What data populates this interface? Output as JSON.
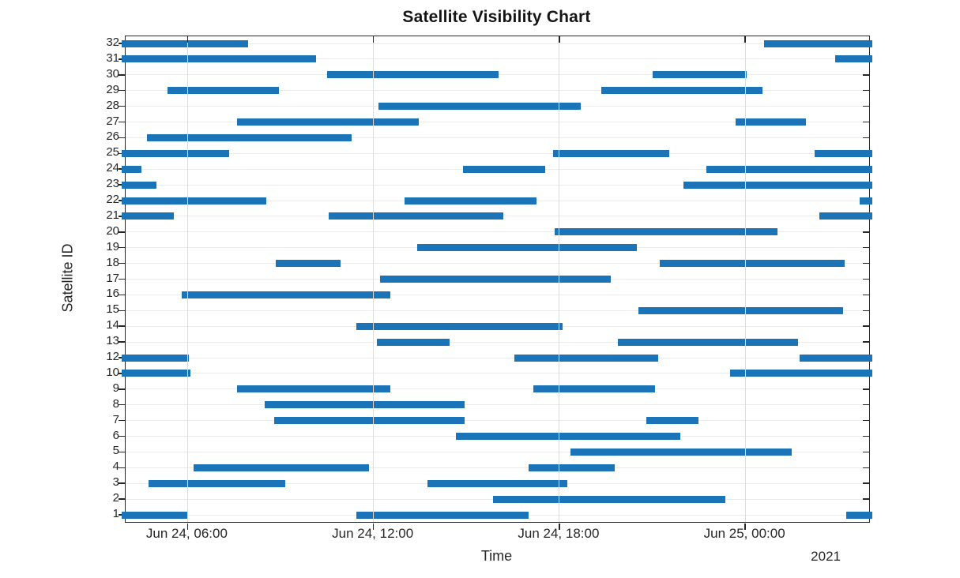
{
  "title": "Satellite Visibility Chart",
  "x_axis": {
    "label": "Time",
    "year_label": "2021",
    "ticks": [
      {
        "label": "Jun 24, 06:00",
        "hour": 6
      },
      {
        "label": "Jun 24, 12:00",
        "hour": 12
      },
      {
        "label": "Jun 24, 18:00",
        "hour": 18
      },
      {
        "label": "Jun 25, 00:00",
        "hour": 24
      }
    ]
  },
  "y_axis": {
    "label": "Satellite ID"
  },
  "colors": {
    "bar": "#1b73b8",
    "axis": "#262626",
    "grid_vertical": "#dcdcdc",
    "grid_horizontal": "#ebebeb"
  },
  "chart_data": {
    "type": "bar",
    "subtype": "gantt-visibility-intervals",
    "title": "Satellite Visibility Chart",
    "xlabel": "Time",
    "ylabel": "Satellite ID",
    "time_unit": "hours_after_2021-06-24_00:00",
    "xlim": [
      4,
      28
    ],
    "grid": true,
    "note": "satellite 11 has no visibility and is absent from the axis",
    "satellites": [
      {
        "id": 32,
        "windows": [
          [
            4.0,
            7.95
          ],
          [
            24.6,
            28.0
          ]
        ]
      },
      {
        "id": 31,
        "windows": [
          [
            4.0,
            10.15
          ],
          [
            26.9,
            28.0
          ]
        ]
      },
      {
        "id": 30,
        "windows": [
          [
            10.5,
            16.05
          ],
          [
            21.0,
            24.05
          ]
        ]
      },
      {
        "id": 29,
        "windows": [
          [
            5.35,
            8.95
          ],
          [
            19.35,
            24.55
          ]
        ]
      },
      {
        "id": 28,
        "windows": [
          [
            12.15,
            18.7
          ]
        ]
      },
      {
        "id": 27,
        "windows": [
          [
            7.6,
            13.45
          ],
          [
            23.7,
            25.95
          ]
        ]
      },
      {
        "id": 26,
        "windows": [
          [
            4.7,
            11.3
          ]
        ]
      },
      {
        "id": 25,
        "windows": [
          [
            4.0,
            7.35
          ],
          [
            17.8,
            21.55
          ],
          [
            26.25,
            28.0
          ]
        ]
      },
      {
        "id": 24,
        "windows": [
          [
            4.0,
            4.5
          ],
          [
            14.9,
            17.55
          ],
          [
            22.75,
            28.0
          ]
        ]
      },
      {
        "id": 23,
        "windows": [
          [
            4.0,
            5.0
          ],
          [
            22.0,
            28.0
          ]
        ]
      },
      {
        "id": 22,
        "windows": [
          [
            4.0,
            8.55
          ],
          [
            13.0,
            17.25
          ],
          [
            27.7,
            28.0
          ]
        ]
      },
      {
        "id": 21,
        "windows": [
          [
            4.0,
            5.55
          ],
          [
            10.55,
            16.2
          ],
          [
            26.4,
            28.0
          ]
        ]
      },
      {
        "id": 20,
        "windows": [
          [
            17.85,
            25.05
          ]
        ]
      },
      {
        "id": 19,
        "windows": [
          [
            13.4,
            20.5
          ]
        ]
      },
      {
        "id": 18,
        "windows": [
          [
            8.85,
            10.95
          ],
          [
            21.25,
            27.2
          ]
        ]
      },
      {
        "id": 17,
        "windows": [
          [
            12.2,
            19.65
          ]
        ]
      },
      {
        "id": 16,
        "windows": [
          [
            5.8,
            12.55
          ]
        ]
      },
      {
        "id": 15,
        "windows": [
          [
            20.55,
            27.15
          ]
        ]
      },
      {
        "id": 14,
        "windows": [
          [
            11.45,
            18.1
          ]
        ]
      },
      {
        "id": 13,
        "windows": [
          [
            12.1,
            14.45
          ],
          [
            19.9,
            25.7
          ]
        ]
      },
      {
        "id": 12,
        "windows": [
          [
            4.0,
            6.05
          ],
          [
            16.55,
            21.2
          ],
          [
            25.75,
            28.0
          ]
        ]
      },
      {
        "id": 10,
        "windows": [
          [
            4.0,
            6.1
          ],
          [
            23.5,
            28.0
          ]
        ]
      },
      {
        "id": 9,
        "windows": [
          [
            7.6,
            12.55
          ],
          [
            17.15,
            21.1
          ]
        ]
      },
      {
        "id": 8,
        "windows": [
          [
            8.5,
            14.95
          ]
        ]
      },
      {
        "id": 7,
        "windows": [
          [
            8.8,
            14.95
          ],
          [
            20.8,
            22.5
          ]
        ]
      },
      {
        "id": 6,
        "windows": [
          [
            14.65,
            21.9
          ]
        ]
      },
      {
        "id": 5,
        "windows": [
          [
            18.35,
            25.5
          ]
        ]
      },
      {
        "id": 4,
        "windows": [
          [
            6.2,
            11.85
          ],
          [
            17.0,
            19.8
          ]
        ]
      },
      {
        "id": 3,
        "windows": [
          [
            4.75,
            9.15
          ],
          [
            13.75,
            18.25
          ]
        ]
      },
      {
        "id": 2,
        "windows": [
          [
            15.85,
            23.35
          ]
        ]
      },
      {
        "id": 1,
        "windows": [
          [
            4.0,
            6.0
          ],
          [
            11.45,
            17.0
          ],
          [
            27.25,
            28.0
          ]
        ]
      }
    ]
  }
}
